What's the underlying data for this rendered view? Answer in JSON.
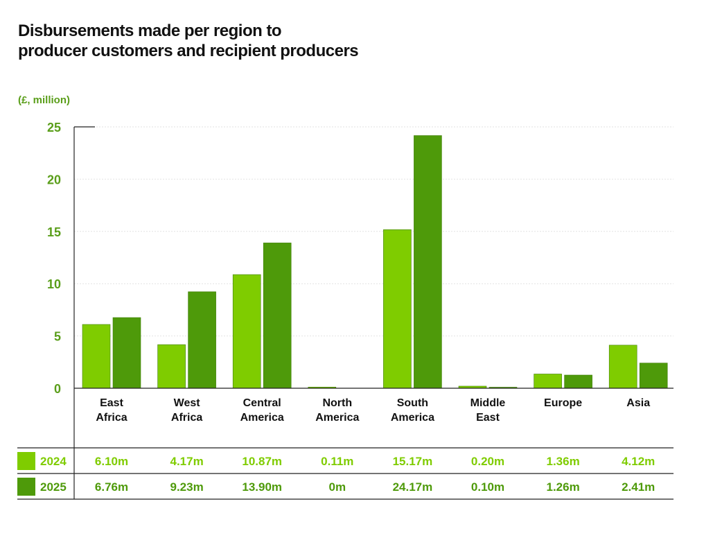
{
  "title_line1": "Disbursements made per region to",
  "title_line2": "producer customers and recipient producers",
  "chart_data": {
    "type": "bar",
    "title": "Disbursements made per region to producer customers and recipient producers",
    "ylabel": "(£, million)",
    "ylim": [
      0,
      25
    ],
    "yticks": [
      0,
      5,
      10,
      15,
      20,
      25
    ],
    "grid": true,
    "categories": [
      [
        "East",
        "Africa"
      ],
      [
        "West",
        "Africa"
      ],
      [
        "Central",
        "America"
      ],
      [
        "North",
        "America"
      ],
      [
        "South",
        "America"
      ],
      [
        "Middle",
        "East"
      ],
      [
        "Europe"
      ],
      [
        "Asia"
      ]
    ],
    "series": [
      {
        "name": "2024",
        "color": "#7fcc00",
        "values": [
          6.1,
          4.17,
          10.87,
          0.11,
          15.17,
          0.2,
          1.36,
          4.12
        ],
        "labels": [
          "6.10m",
          "4.17m",
          "10.87m",
          "0.11m",
          "15.17m",
          "0.20m",
          "1.36m",
          "4.12m"
        ]
      },
      {
        "name": "2025",
        "color": "#4e9a0a",
        "values": [
          6.76,
          9.23,
          13.9,
          0,
          24.17,
          0.1,
          1.26,
          2.41
        ],
        "labels": [
          "6.76m",
          "9.23m",
          "13.90m",
          "0m",
          "24.17m",
          "0.10m",
          "1.26m",
          "2.41m"
        ]
      }
    ]
  }
}
